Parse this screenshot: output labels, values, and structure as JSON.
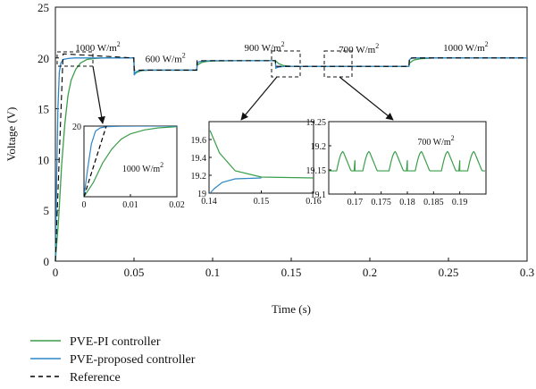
{
  "chart_data": {
    "type": "line",
    "xlabel": "Time (s)",
    "ylabel": "Voltage (V)",
    "xlim": [
      0,
      0.3
    ],
    "ylim": [
      0,
      25
    ],
    "xticks": [
      "0",
      "0.05",
      "0.1",
      "0.15",
      "0.2",
      "0.25",
      "0.3"
    ],
    "yticks": [
      "0",
      "5",
      "10",
      "15",
      "20",
      "25"
    ],
    "irradiance_labels": [
      {
        "text": "1000 W/m",
        "sup": "2",
        "x": 0.027,
        "y": 20.7
      },
      {
        "text": "600 W/m",
        "sup": "2",
        "x": 0.07,
        "y": 19.6
      },
      {
        "text": "900 W/m",
        "sup": "2",
        "x": 0.133,
        "y": 20.7
      },
      {
        "text": "700 W/m",
        "sup": "2",
        "x": 0.193,
        "y": 20.5
      },
      {
        "text": "1000 W/m",
        "sup": "2",
        "x": 0.261,
        "y": 20.7
      }
    ],
    "series": [
      {
        "name": "PVE-PI controller",
        "color": "#3a9e4a",
        "x": [
          0,
          0.002,
          0.004,
          0.006,
          0.008,
          0.01,
          0.013,
          0.016,
          0.02,
          0.025,
          0.03,
          0.035,
          0.04,
          0.0499,
          0.0502,
          0.052,
          0.055,
          0.06,
          0.07,
          0.08,
          0.0899,
          0.0902,
          0.093,
          0.096,
          0.1,
          0.11,
          0.12,
          0.13,
          0.1399,
          0.1402,
          0.142,
          0.145,
          0.15,
          0.16,
          0.17,
          0.18,
          0.19,
          0.2,
          0.21,
          0.2249,
          0.2252,
          0.228,
          0.232,
          0.24,
          0.26,
          0.28,
          0.3
        ],
        "y": [
          0,
          4.0,
          9.5,
          13.5,
          16.3,
          17.8,
          18.9,
          19.5,
          19.85,
          19.95,
          20.0,
          20.0,
          20.0,
          20.0,
          18.4,
          18.6,
          18.75,
          18.8,
          18.8,
          18.8,
          18.8,
          19.3,
          19.55,
          19.65,
          19.7,
          19.72,
          19.73,
          19.73,
          19.73,
          19.7,
          19.45,
          19.25,
          19.18,
          19.17,
          19.17,
          19.17,
          19.17,
          19.17,
          19.17,
          19.17,
          19.5,
          19.8,
          19.92,
          20.0,
          20.0,
          20.0,
          20.0
        ]
      },
      {
        "name": "PVE-proposed controller",
        "color": "#2f86c8",
        "x": [
          0,
          0.0008,
          0.0016,
          0.0025,
          0.0035,
          0.005,
          0.008,
          0.012,
          0.02,
          0.03,
          0.04,
          0.0499,
          0.0502,
          0.051,
          0.053,
          0.056,
          0.06,
          0.08,
          0.0899,
          0.0902,
          0.091,
          0.093,
          0.096,
          0.1,
          0.13,
          0.1399,
          0.1402,
          0.141,
          0.1425,
          0.145,
          0.15,
          0.18,
          0.2249,
          0.2252,
          0.226,
          0.228,
          0.232,
          0.26,
          0.3
        ],
        "y": [
          0,
          8.0,
          15.0,
          18.6,
          19.5,
          19.85,
          19.95,
          20.0,
          20.0,
          20.0,
          20.0,
          20.0,
          18.3,
          18.6,
          18.75,
          18.8,
          18.8,
          18.8,
          18.8,
          19.4,
          19.6,
          19.68,
          19.72,
          19.73,
          19.73,
          19.73,
          19.0,
          19.05,
          19.12,
          19.16,
          19.17,
          19.17,
          19.17,
          19.8,
          19.95,
          20.0,
          20.0,
          20.0,
          20.0
        ]
      },
      {
        "name": "Reference",
        "color": "#000000",
        "dash": "6,4",
        "x": [
          0,
          0.0049,
          0.005,
          0.0499,
          0.0501,
          0.0899,
          0.0901,
          0.1399,
          0.1401,
          0.2249,
          0.2251,
          0.3
        ],
        "y": [
          0,
          20.4,
          20.4,
          20.0,
          18.8,
          18.8,
          19.73,
          19.73,
          19.17,
          19.17,
          20.0,
          20.0
        ]
      }
    ],
    "insets": [
      {
        "xlim": [
          0,
          0.02
        ],
        "ylim": [
          0,
          20
        ],
        "xticks": [
          "0",
          "0.01",
          "0.02"
        ],
        "ytick": "20",
        "annotation": "1000 W/m",
        "annotation_sup": "2"
      },
      {
        "xlim": [
          0.14,
          0.16
        ],
        "ylim": [
          19,
          19.8
        ],
        "xticks": [
          "0.14",
          "0.15",
          "0.16"
        ],
        "yticks": [
          "19",
          "19.2",
          "19.4",
          "19.6"
        ]
      },
      {
        "xlim": [
          0.165,
          0.195
        ],
        "ylim": [
          19.1,
          19.25
        ],
        "xticks": [
          "0.17",
          "0.175",
          "0.18",
          "0.185",
          "0.19"
        ],
        "yticks": [
          "19.1",
          "19.15",
          "19.2",
          "19.25"
        ],
        "annotation": "700 W/m",
        "annotation_sup": "2"
      }
    ],
    "legend": {
      "position": "bottom-left",
      "items": [
        {
          "label": "PVE-PI controller",
          "color": "#3a9e4a",
          "style": "solid"
        },
        {
          "label": "PVE-proposed controller",
          "color": "#2f86c8",
          "style": "solid"
        },
        {
          "label": "Reference",
          "color": "#000000",
          "style": "dashed"
        }
      ]
    }
  }
}
